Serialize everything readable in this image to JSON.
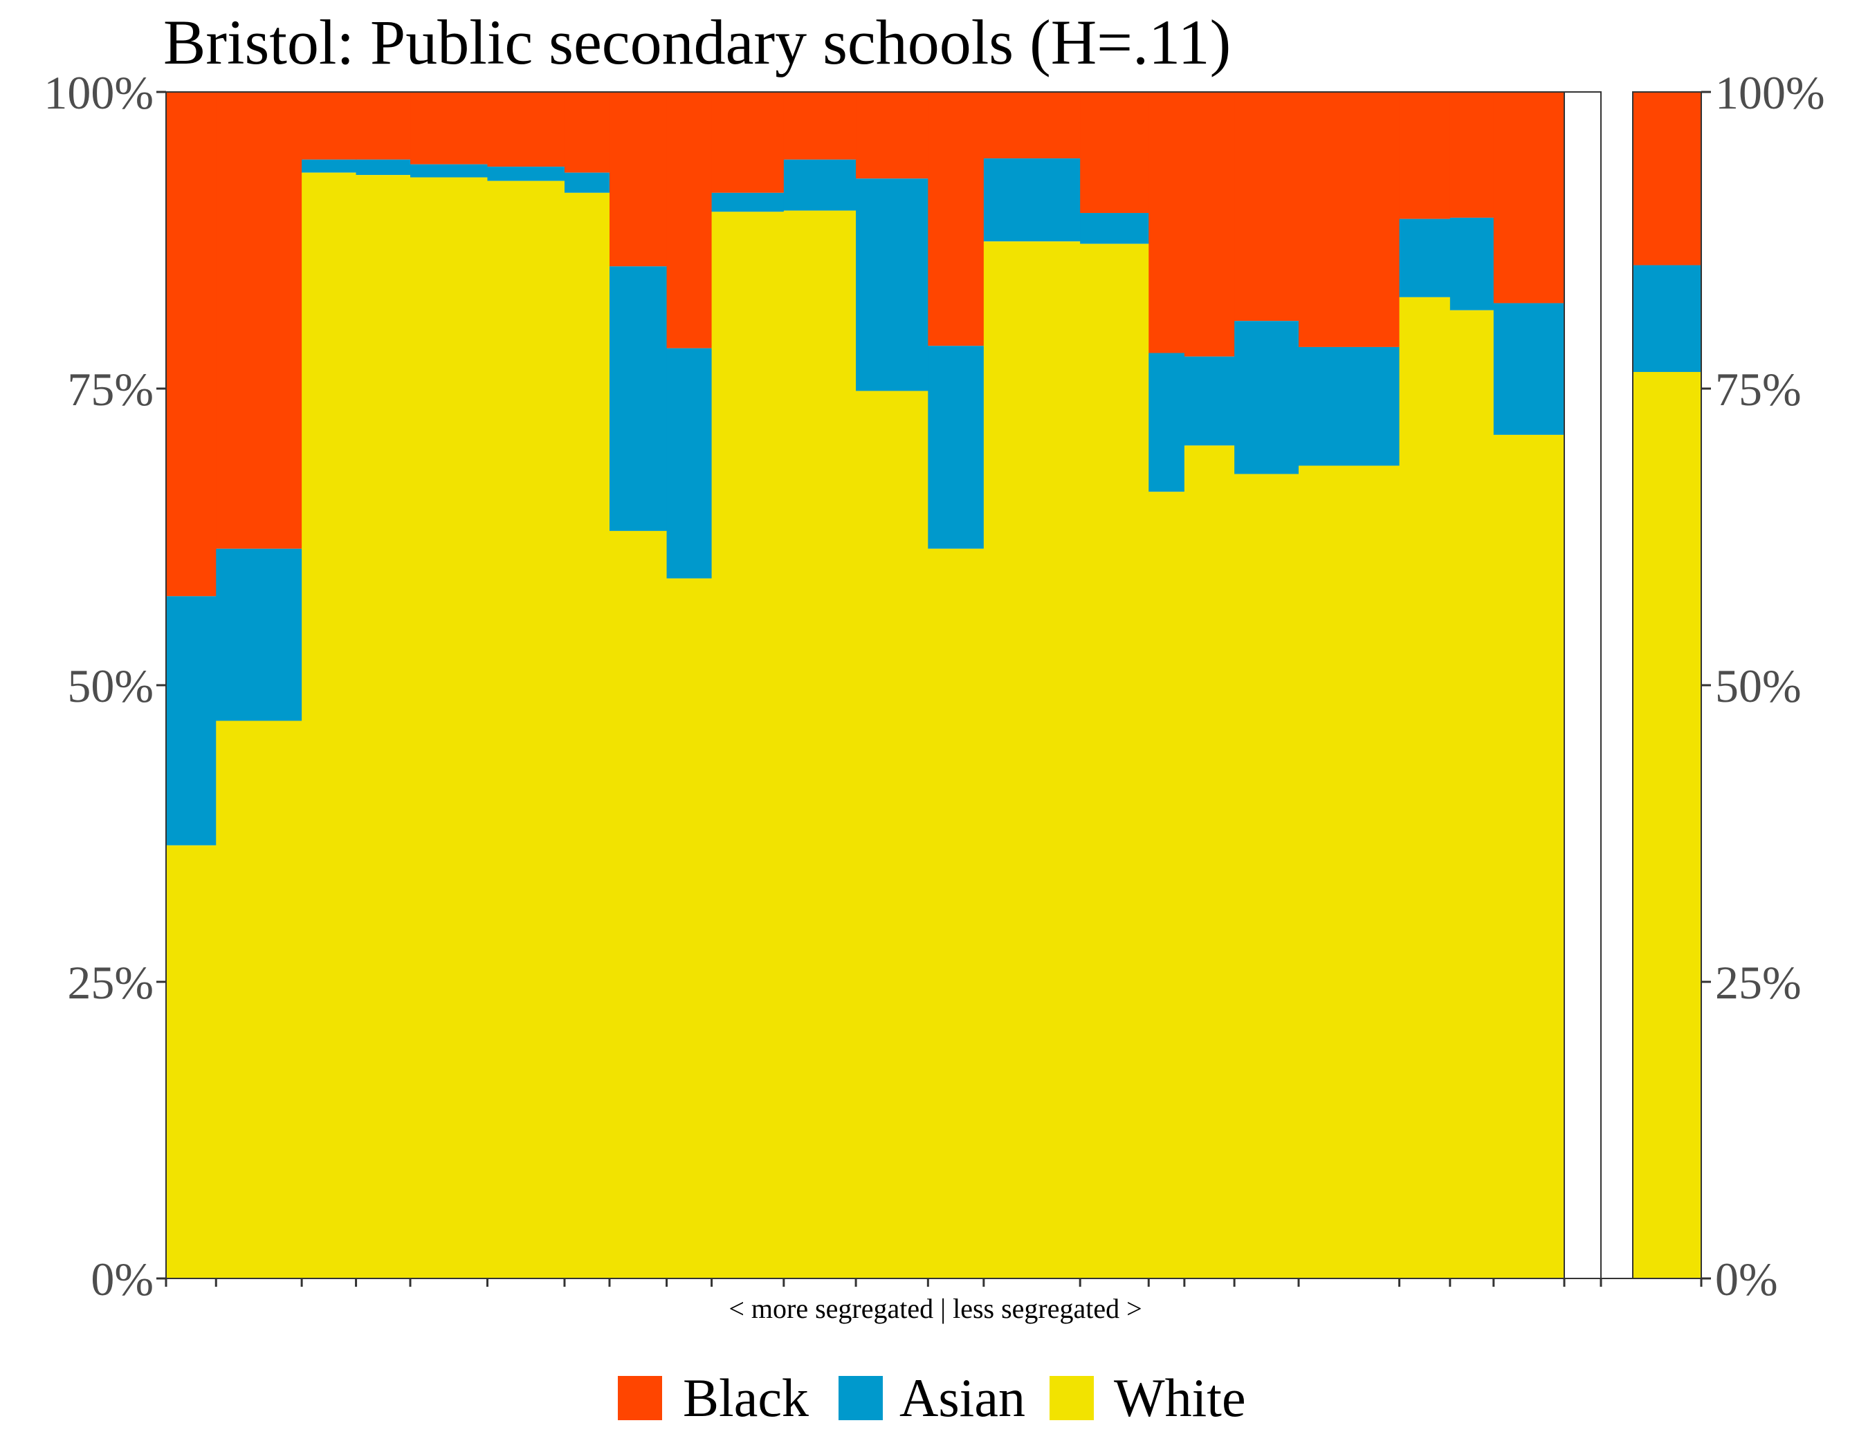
{
  "chart_data": {
    "type": "bar",
    "subtype": "stacked-100-percent-variable-width",
    "title": "Bristol: Public secondary schools (H=.11)",
    "xlabel": "< more segregated | less segregated >",
    "ylabel": "",
    "ylim": [
      0,
      100
    ],
    "y_ticks": [
      "0%",
      "25%",
      "50%",
      "75%",
      "100%"
    ],
    "y_tick_values": [
      0,
      25,
      50,
      75,
      100
    ],
    "grid": false,
    "legend_position": "bottom",
    "colors": {
      "Black": "#FF4500",
      "Asian": "#0099CC",
      "White": "#F2E300"
    },
    "series_order": [
      "White",
      "Asian",
      "Black"
    ],
    "schools": [
      {
        "enrollment_share": 0.07,
        "white": 36.5,
        "asian": 57.5
      },
      {
        "enrollment_share": 0.12,
        "white": 47.0,
        "asian": 61.5
      },
      {
        "enrollment_share": 0.076,
        "white": 93.2,
        "asian": 94.3
      },
      {
        "enrollment_share": 0.076,
        "white": 93.0,
        "asian": 94.3
      },
      {
        "enrollment_share": 0.108,
        "white": 92.8,
        "asian": 93.9
      },
      {
        "enrollment_share": 0.108,
        "white": 92.5,
        "asian": 93.7
      },
      {
        "enrollment_share": 0.063,
        "white": 91.5,
        "asian": 93.2
      },
      {
        "enrollment_share": 0.08,
        "white": 63.0,
        "asian": 85.3
      },
      {
        "enrollment_share": 0.063,
        "white": 59.0,
        "asian": 78.4
      },
      {
        "enrollment_share": 0.101,
        "white": 89.9,
        "asian": 91.5
      },
      {
        "enrollment_share": 0.101,
        "white": 90.0,
        "asian": 94.3
      },
      {
        "enrollment_share": 0.101,
        "white": 74.8,
        "asian": 92.7
      },
      {
        "enrollment_share": 0.078,
        "white": 61.5,
        "asian": 78.6
      },
      {
        "enrollment_share": 0.135,
        "white": 87.4,
        "asian": 94.4
      },
      {
        "enrollment_share": 0.096,
        "white": 87.2,
        "asian": 89.8
      },
      {
        "enrollment_share": 0.05,
        "white": 66.3,
        "asian": 78.0
      },
      {
        "enrollment_share": 0.07,
        "white": 70.2,
        "asian": 77.7
      },
      {
        "enrollment_share": 0.09,
        "white": 67.8,
        "asian": 80.7
      },
      {
        "enrollment_share": 0.141,
        "white": 68.5,
        "asian": 78.5
      },
      {
        "enrollment_share": 0.071,
        "white": 82.7,
        "asian": 89.3
      },
      {
        "enrollment_share": 0.061,
        "white": 81.6,
        "asian": 89.4
      },
      {
        "enrollment_share": 0.099,
        "white": 71.1,
        "asian": 82.2
      }
    ],
    "overall": {
      "white": 76.4,
      "asian": 85.4
    }
  },
  "legend": {
    "items": [
      {
        "name": "Black",
        "color": "#FF4500"
      },
      {
        "name": "Asian",
        "color": "#0099CC"
      },
      {
        "name": "White",
        "color": "#F2E300"
      }
    ]
  }
}
